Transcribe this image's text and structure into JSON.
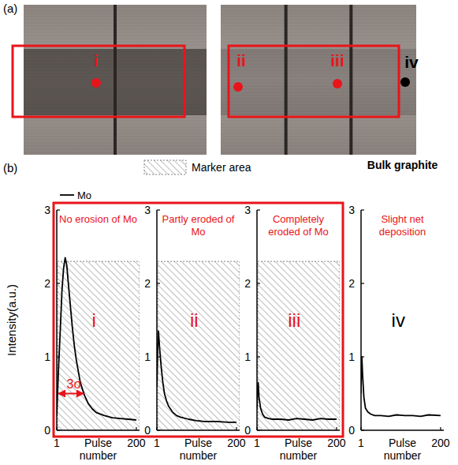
{
  "panel_a": {
    "label": "(a)",
    "points": [
      {
        "label": "i",
        "color": "#e8141a"
      },
      {
        "label": "ii",
        "color": "#e8141a"
      },
      {
        "label": "iii",
        "color": "#e8141a"
      },
      {
        "label": "iv",
        "color": "#000000"
      }
    ]
  },
  "panel_b": {
    "label": "(b)",
    "marker_legend": "Marker area",
    "bulk_label": "Bulk graphite"
  },
  "chart_data": [
    {
      "type": "line",
      "title": "No erosion of Mo",
      "x": [
        1,
        3,
        6,
        10,
        14,
        18,
        22,
        26,
        30,
        35,
        40,
        45,
        50,
        55,
        60,
        70,
        80,
        90,
        100,
        120,
        140,
        160,
        180,
        200
      ],
      "series": [
        {
          "name": "Mo",
          "color": "#000000",
          "values": [
            0.2,
            0.5,
            0.9,
            1.4,
            1.9,
            2.2,
            2.35,
            2.25,
            2.0,
            1.7,
            1.4,
            1.15,
            0.95,
            0.8,
            0.65,
            0.48,
            0.36,
            0.29,
            0.24,
            0.2,
            0.17,
            0.16,
            0.15,
            0.14
          ]
        }
      ],
      "xlim": [
        1,
        208
      ],
      "xticks": [
        1,
        200
      ],
      "ylim": [
        0,
        3
      ],
      "yticks": [
        0,
        1,
        2,
        3
      ],
      "x_label": "Pulse number",
      "y_label": "Intensity(a.u.)",
      "legend": "upper left",
      "marker_area": [
        0,
        2.3
      ],
      "annotations": [
        {
          "text": "i",
          "color": "#e8141a"
        },
        {
          "text": "3σ",
          "color": "#e8141a",
          "x": [
            1,
            68
          ],
          "y": 0.5
        }
      ]
    },
    {
      "type": "line",
      "title": "Partly eroded of Mo",
      "x": [
        1,
        3,
        5,
        8,
        12,
        16,
        20,
        25,
        30,
        40,
        50,
        60,
        80,
        100,
        120,
        150,
        180,
        200
      ],
      "series": [
        {
          "color": "#000000",
          "values": [
            0.6,
            1.1,
            1.35,
            1.1,
            0.85,
            0.65,
            0.5,
            0.4,
            0.33,
            0.25,
            0.2,
            0.18,
            0.15,
            0.13,
            0.12,
            0.12,
            0.11,
            0.11
          ]
        }
      ],
      "xlim": [
        1,
        208
      ],
      "xticks": [
        1,
        200
      ],
      "ylim": [
        0,
        3
      ],
      "yticks": [
        0,
        1,
        2,
        3
      ],
      "x_label": "Pulse number",
      "marker_area": [
        0,
        2.3
      ],
      "annotations": [
        {
          "text": "ii",
          "color": "#e8141a"
        }
      ]
    },
    {
      "type": "line",
      "title": "Completely eroded of Mo",
      "x": [
        1,
        2,
        4,
        6,
        10,
        15,
        20,
        30,
        40,
        60,
        80,
        100,
        120,
        140,
        160,
        180,
        200
      ],
      "series": [
        {
          "color": "#000000",
          "values": [
            0.3,
            0.5,
            0.65,
            0.45,
            0.3,
            0.22,
            0.18,
            0.16,
            0.15,
            0.15,
            0.14,
            0.16,
            0.15,
            0.14,
            0.16,
            0.15,
            0.15
          ]
        }
      ],
      "xlim": [
        1,
        208
      ],
      "xticks": [
        1,
        200
      ],
      "ylim": [
        0,
        3
      ],
      "yticks": [
        0,
        1,
        2,
        3
      ],
      "x_label": "Pulse number",
      "marker_area": [
        0,
        2.3
      ],
      "annotations": [
        {
          "text": "iii",
          "color": "#e8141a"
        }
      ]
    },
    {
      "type": "line",
      "title": "Slight net deposition",
      "x": [
        1,
        2,
        3,
        5,
        8,
        12,
        18,
        25,
        35,
        50,
        70,
        90,
        110,
        130,
        150,
        170,
        200
      ],
      "series": [
        {
          "color": "#000000",
          "values": [
            0.5,
            0.9,
            1.0,
            0.75,
            0.45,
            0.3,
            0.25,
            0.22,
            0.2,
            0.2,
            0.19,
            0.21,
            0.2,
            0.2,
            0.19,
            0.21,
            0.2
          ]
        }
      ],
      "xlim": [
        1,
        208
      ],
      "xticks": [
        1,
        200
      ],
      "ylim": [
        0,
        3
      ],
      "yticks": [
        0,
        1,
        2,
        3
      ],
      "x_label": "Pulse number",
      "annotations": [
        {
          "text": "iv",
          "color": "#000000"
        }
      ]
    }
  ]
}
